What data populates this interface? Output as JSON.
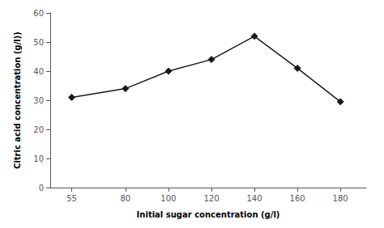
{
  "chart_data": {
    "type": "line",
    "x": [
      55,
      80,
      100,
      120,
      140,
      160,
      180
    ],
    "values": [
      31,
      34,
      40,
      44,
      52,
      41,
      29.5
    ],
    "xlabel": "Initial sugar concentration (g/l)",
    "ylabel": "Citric acid concentration (g/l))",
    "xlim": [
      45,
      192
    ],
    "ylim": [
      0,
      60
    ],
    "xticks": [
      55,
      80,
      100,
      120,
      140,
      160,
      180
    ],
    "yticks": [
      0,
      10,
      20,
      30,
      40,
      50,
      60
    ],
    "color": "#1a1a1a",
    "marker": "diamond",
    "grid": false
  }
}
